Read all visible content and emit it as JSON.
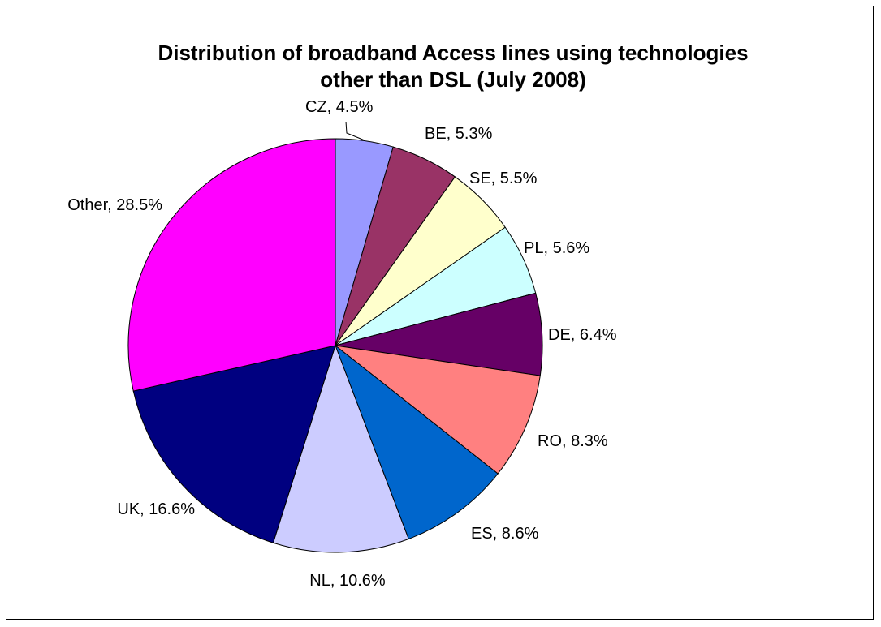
{
  "chart_data": {
    "type": "pie",
    "title_lines": [
      "Distribution of broadband Access lines using technologies",
      "other than DSL (July 2008)"
    ],
    "slices": [
      {
        "name": "CZ",
        "value": 4.5,
        "label": "CZ, 4.5%",
        "color": "#9999ff"
      },
      {
        "name": "BE",
        "value": 5.3,
        "label": "BE, 5.3%",
        "color": "#993366"
      },
      {
        "name": "SE",
        "value": 5.5,
        "label": "SE, 5.5%",
        "color": "#ffffcc"
      },
      {
        "name": "PL",
        "value": 5.6,
        "label": "PL, 5.6%",
        "color": "#ccffff"
      },
      {
        "name": "DE",
        "value": 6.4,
        "label": "DE, 6.4%",
        "color": "#660066"
      },
      {
        "name": "RO",
        "value": 8.3,
        "label": "RO, 8.3%",
        "color": "#ff8080"
      },
      {
        "name": "ES",
        "value": 8.6,
        "label": "ES, 8.6%",
        "color": "#0066cc"
      },
      {
        "name": "NL",
        "value": 10.6,
        "label": "NL, 10.6%",
        "color": "#ccccff"
      },
      {
        "name": "UK",
        "value": 16.6,
        "label": "UK, 16.6%",
        "color": "#000080"
      },
      {
        "name": "Other",
        "value": 28.5,
        "label": "Other, 28.5%",
        "color": "#ff00ff"
      }
    ],
    "start_angle": "12 o'clock",
    "direction": "clockwise",
    "legend": "none"
  }
}
